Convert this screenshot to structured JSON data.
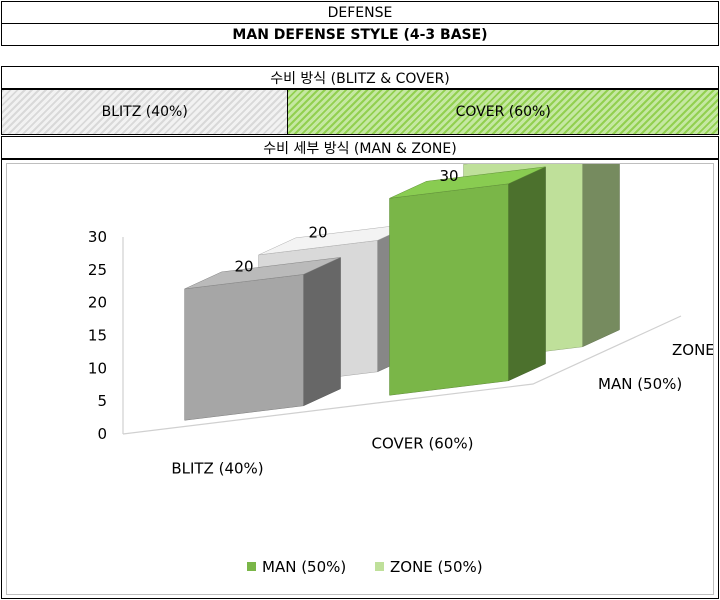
{
  "header": {
    "title": "DEFENSE",
    "subtitle": "MAN DEFENSE STYLE (4-3 BASE)"
  },
  "scheme": {
    "title": "수비 방식 (BLITZ & COVER)",
    "blitz_label": "BLITZ (40%)",
    "cover_label": "COVER (60%)",
    "blitz_share": 0.4,
    "cover_share": 0.6
  },
  "detail": {
    "title": "수비 세부 방식 (MAN & ZONE)"
  },
  "colors": {
    "blitz_man": "#a6a6a6",
    "blitz_zone": "#d9d9d9",
    "cover_man": "#7ab648",
    "cover_zone": "#bfe09a",
    "blitz_stripe": "#d9d9d9",
    "cover_stripe": "#92d050"
  },
  "chart_data": {
    "type": "bar",
    "categories": [
      "BLITZ (40%)",
      "COVER (60%)"
    ],
    "depth_categories": [
      "MAN (50%)",
      "ZONE (50%)"
    ],
    "series": [
      {
        "name": "MAN (50%)",
        "values": [
          20,
          30
        ]
      },
      {
        "name": "ZONE (50%)",
        "values": [
          20,
          30
        ]
      }
    ],
    "y_ticks": [
      "0",
      "5",
      "10",
      "15",
      "20",
      "25",
      "30"
    ],
    "ylim": [
      0,
      30
    ],
    "data_labels": [
      "20",
      "20",
      "30",
      "30"
    ],
    "legend_position": "bottom",
    "grid": false
  }
}
